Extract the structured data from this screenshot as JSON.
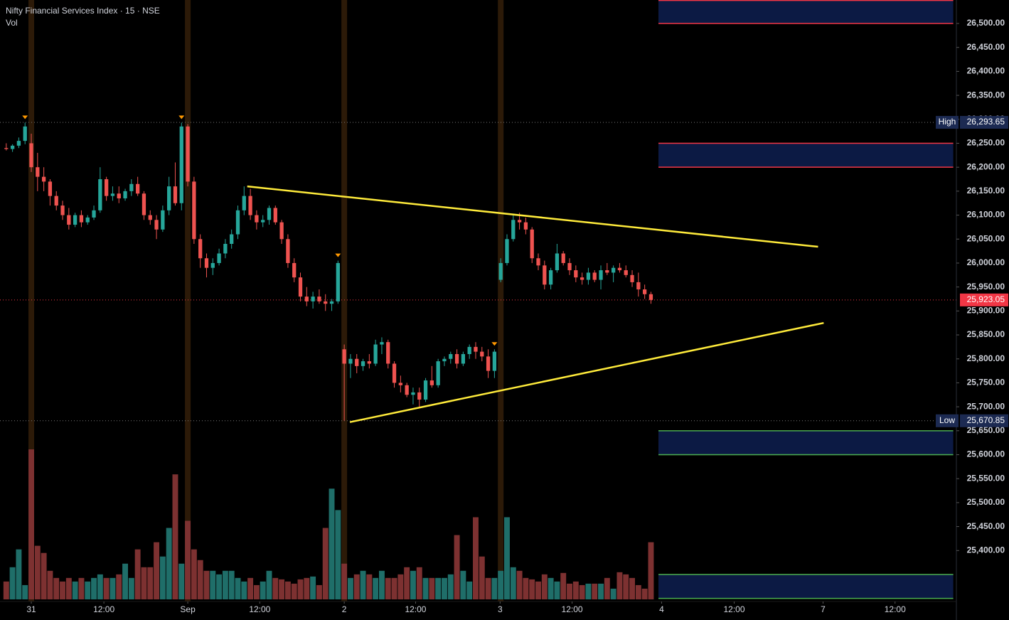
{
  "chart_data": {
    "type": "candlestick",
    "title": "Nifty Financial Services Index · 15 · NSE",
    "volume_label": "Vol",
    "up_color": "#26a69a",
    "down_color": "#ef5350",
    "volume_up_color": "#1f6e69",
    "volume_down_color": "#7d3131",
    "x": [
      -4,
      -3,
      -2,
      -1,
      0,
      1,
      2,
      3,
      4,
      5,
      6,
      7,
      8,
      9,
      10,
      11,
      12,
      13,
      14,
      15,
      16,
      17,
      18,
      19,
      20,
      21,
      22,
      23,
      24,
      25,
      26,
      27,
      28,
      29,
      30,
      31,
      32,
      33,
      34,
      35,
      36,
      37,
      38,
      39,
      40,
      41,
      42,
      43,
      44,
      45,
      46,
      47,
      48,
      49,
      50,
      51,
      52,
      53,
      54,
      55,
      56,
      57,
      58,
      59,
      60,
      61,
      62,
      63,
      64,
      65,
      66,
      67,
      68,
      69,
      70,
      71,
      72,
      73,
      74,
      75,
      76,
      77,
      78,
      79,
      80,
      81,
      82,
      83,
      84,
      85,
      86,
      87,
      88,
      89,
      90,
      91,
      92,
      93,
      94,
      95,
      96,
      97,
      98,
      99
    ],
    "candles": [
      [
        26240,
        26250,
        26235,
        26238
      ],
      [
        26238,
        26248,
        26232,
        26245
      ],
      [
        26245,
        26262,
        26240,
        26255
      ],
      [
        26255,
        26293,
        26248,
        26285
      ],
      [
        26250,
        26270,
        26190,
        26200
      ],
      [
        26200,
        26230,
        26150,
        26180
      ],
      [
        26180,
        26200,
        26150,
        26170
      ],
      [
        26170,
        26175,
        26120,
        26140
      ],
      [
        26140,
        26150,
        26110,
        26120
      ],
      [
        26120,
        26130,
        26090,
        26100
      ],
      [
        26100,
        26115,
        26070,
        26080
      ],
      [
        26080,
        26105,
        26075,
        26100
      ],
      [
        26100,
        26110,
        26075,
        26085
      ],
      [
        26085,
        26100,
        26080,
        26095
      ],
      [
        26095,
        26120,
        26090,
        26110
      ],
      [
        26110,
        26200,
        26105,
        26175
      ],
      [
        26175,
        26180,
        26130,
        26140
      ],
      [
        26140,
        26160,
        26130,
        26145
      ],
      [
        26145,
        26160,
        26125,
        26135
      ],
      [
        26135,
        26155,
        26130,
        26150
      ],
      [
        26150,
        26175,
        26140,
        26165
      ],
      [
        26165,
        26180,
        26140,
        26145
      ],
      [
        26145,
        26150,
        26090,
        26100
      ],
      [
        26100,
        26110,
        26080,
        26090
      ],
      [
        26090,
        26100,
        26050,
        26070
      ],
      [
        26070,
        26120,
        26065,
        26110
      ],
      [
        26110,
        26180,
        26100,
        26160
      ],
      [
        26160,
        26210,
        26120,
        26125
      ],
      [
        26125,
        26293,
        26110,
        26285
      ],
      [
        26285,
        26290,
        26160,
        26170
      ],
      [
        26170,
        26180,
        26040,
        26050
      ],
      [
        26050,
        26060,
        25990,
        26010
      ],
      [
        26010,
        26020,
        25970,
        25990
      ],
      [
        25990,
        26010,
        25975,
        26000
      ],
      [
        26000,
        26030,
        25995,
        26020
      ],
      [
        26020,
        26050,
        26010,
        26040
      ],
      [
        26040,
        26070,
        26030,
        26060
      ],
      [
        26060,
        26120,
        26050,
        26110
      ],
      [
        26110,
        26160,
        26100,
        26140
      ],
      [
        26140,
        26155,
        26090,
        26100
      ],
      [
        26100,
        26110,
        26070,
        26085
      ],
      [
        26085,
        26100,
        26075,
        26090
      ],
      [
        26090,
        26120,
        26080,
        26115
      ],
      [
        26115,
        26120,
        26080,
        26085
      ],
      [
        26085,
        26090,
        26040,
        26050
      ],
      [
        26050,
        26060,
        25990,
        26000
      ],
      [
        26000,
        26010,
        25960,
        25970
      ],
      [
        25970,
        25980,
        25920,
        25930
      ],
      [
        25930,
        25950,
        25910,
        25920
      ],
      [
        25920,
        25940,
        25905,
        25930
      ],
      [
        25930,
        25945,
        25915,
        25920
      ],
      [
        25920,
        25935,
        25900,
        25915
      ],
      [
        25915,
        25925,
        25900,
        25920
      ],
      [
        25920,
        26005,
        25915,
        26000
      ],
      [
        25820,
        25830,
        25671,
        25790
      ],
      [
        25790,
        25810,
        25760,
        25800
      ],
      [
        25800,
        25810,
        25770,
        25785
      ],
      [
        25785,
        25800,
        25775,
        25795
      ],
      [
        25795,
        25810,
        25780,
        25790
      ],
      [
        25790,
        25840,
        25785,
        25830
      ],
      [
        25830,
        25845,
        25810,
        25835
      ],
      [
        25835,
        25840,
        25780,
        25790
      ],
      [
        25790,
        25795,
        25740,
        25750
      ],
      [
        25750,
        25765,
        25730,
        25745
      ],
      [
        25745,
        25750,
        25720,
        25725
      ],
      [
        25725,
        25740,
        25705,
        25730
      ],
      [
        25730,
        25740,
        25700,
        25715
      ],
      [
        25715,
        25760,
        25710,
        25755
      ],
      [
        25755,
        25785,
        25740,
        25745
      ],
      [
        25745,
        25800,
        25740,
        25795
      ],
      [
        25795,
        25805,
        25785,
        25800
      ],
      [
        25800,
        25815,
        25790,
        25810
      ],
      [
        25810,
        25820,
        25780,
        25790
      ],
      [
        25790,
        25815,
        25785,
        25810
      ],
      [
        25810,
        25830,
        25800,
        25825
      ],
      [
        25825,
        25835,
        25800,
        25815
      ],
      [
        25815,
        25825,
        25795,
        25805
      ],
      [
        25805,
        25820,
        25760,
        25775
      ],
      [
        25775,
        25820,
        25760,
        25815
      ],
      [
        25965,
        26010,
        25960,
        26000
      ],
      [
        26000,
        26060,
        25995,
        26050
      ],
      [
        26050,
        26100,
        26045,
        26090
      ],
      [
        26090,
        26105,
        26070,
        26085
      ],
      [
        26085,
        26095,
        26060,
        26070
      ],
      [
        26070,
        26075,
        26000,
        26010
      ],
      [
        26010,
        26020,
        25985,
        25995
      ],
      [
        25995,
        26005,
        25945,
        25955
      ],
      [
        25955,
        25990,
        25945,
        25985
      ],
      [
        25985,
        26040,
        25980,
        26020
      ],
      [
        26020,
        26025,
        25995,
        26000
      ],
      [
        26000,
        26010,
        25975,
        25985
      ],
      [
        25985,
        25995,
        25960,
        25970
      ],
      [
        25970,
        25980,
        25955,
        25965
      ],
      [
        25965,
        25990,
        25955,
        25980
      ],
      [
        25980,
        25985,
        25960,
        25965
      ],
      [
        25965,
        25995,
        25945,
        25985
      ],
      [
        25985,
        26000,
        25975,
        25980
      ],
      [
        25980,
        25995,
        25960,
        25990
      ],
      [
        25990,
        26000,
        25980,
        25985
      ],
      [
        25985,
        25995,
        25970,
        25975
      ],
      [
        25975,
        25985,
        25950,
        25960
      ],
      [
        25960,
        25980,
        25930,
        25945
      ],
      [
        25945,
        25955,
        25925,
        25935
      ],
      [
        25935,
        25940,
        25915,
        25923.05
      ]
    ],
    "volume": [
      25,
      45,
      70,
      20,
      210,
      75,
      65,
      40,
      30,
      25,
      30,
      25,
      30,
      25,
      30,
      35,
      30,
      30,
      35,
      50,
      30,
      70,
      45,
      45,
      80,
      60,
      100,
      175,
      50,
      110,
      70,
      55,
      40,
      40,
      35,
      40,
      40,
      30,
      25,
      30,
      20,
      25,
      40,
      30,
      28,
      25,
      22,
      28,
      30,
      32,
      20,
      100,
      155,
      125,
      50,
      30,
      35,
      40,
      35,
      30,
      40,
      30,
      30,
      35,
      45,
      40,
      45,
      30,
      30,
      30,
      30,
      35,
      90,
      40,
      25,
      115,
      60,
      30,
      30,
      40,
      115,
      45,
      40,
      30,
      28,
      25,
      35,
      30,
      25,
      37,
      22,
      25,
      20,
      22,
      22,
      22,
      30,
      15,
      38,
      35,
      30,
      20,
      15,
      80
    ],
    "session_starts": [
      0,
      25,
      50,
      75
    ],
    "markers": [
      3,
      28,
      53,
      78
    ],
    "ylim": [
      25255,
      26549
    ],
    "yticks": [
      {
        "value": 25400,
        "label": "25,400.00"
      },
      {
        "value": 25450,
        "label": "25,450.00"
      },
      {
        "value": 25500,
        "label": "25,500.00"
      },
      {
        "value": 25550,
        "label": "25,550.00"
      },
      {
        "value": 25600,
        "label": "25,600.00"
      },
      {
        "value": 25650,
        "label": "25,650.00"
      },
      {
        "value": 25700,
        "label": "25,700.00"
      },
      {
        "value": 25750,
        "label": "25,750.00"
      },
      {
        "value": 25800,
        "label": "25,800.00"
      },
      {
        "value": 25850,
        "label": "25,850.00"
      },
      {
        "value": 25900,
        "label": "25,900.00"
      },
      {
        "value": 25950,
        "label": "25,950.00"
      },
      {
        "value": 26000,
        "label": "26,000.00"
      },
      {
        "value": 26050,
        "label": "26,050.00"
      },
      {
        "value": 26100,
        "label": "26,100.00"
      },
      {
        "value": 26150,
        "label": "26,150.00"
      },
      {
        "value": 26200,
        "label": "26,200.00"
      },
      {
        "value": 26250,
        "label": "26,250.00"
      },
      {
        "value": 26300,
        "label": "26,300.00"
      },
      {
        "value": 26350,
        "label": "26,350.00"
      },
      {
        "value": 26400,
        "label": "26,400.00"
      },
      {
        "value": 26450,
        "label": "26,450.00"
      },
      {
        "value": 26500,
        "label": "26,500.00"
      }
    ],
    "xlim": [
      -5,
      147.8
    ],
    "xticks": [
      {
        "value": 0,
        "label": "31"
      },
      {
        "value": 11.6,
        "label": "12:00"
      },
      {
        "value": 25,
        "label": "Sep"
      },
      {
        "value": 36.5,
        "label": "12:00"
      },
      {
        "value": 50,
        "label": "2"
      },
      {
        "value": 61.4,
        "label": "12:00"
      },
      {
        "value": 74.9,
        "label": "3"
      },
      {
        "value": 86.4,
        "label": "12:00"
      },
      {
        "value": 100.7,
        "label": "4"
      },
      {
        "value": 112.3,
        "label": "12:00"
      },
      {
        "value": 126.5,
        "label": "7"
      },
      {
        "value": 138,
        "label": "12:00"
      }
    ],
    "levels": [
      {
        "label": "High",
        "value": 26293.65,
        "value_label": "26,293.65",
        "color": "#1c2a52"
      },
      {
        "label": "Low",
        "value": 25670.85,
        "value_label": "25,670.85",
        "color": "#1c2a52"
      },
      {
        "value": 25923.05,
        "value_label": "25,923.05",
        "color": "#f23645"
      }
    ],
    "zones": [
      {
        "x": [
          100.2,
          147.3
        ],
        "y": [
          26500,
          26548
        ],
        "border": "#f23645"
      },
      {
        "x": [
          100.2,
          147.3
        ],
        "y": [
          26200,
          26250
        ],
        "border": "#f23645"
      },
      {
        "x": [
          100.2,
          147.3
        ],
        "y": [
          25600,
          25650
        ],
        "border": "#4caf50"
      },
      {
        "x": [
          100.2,
          147.3
        ],
        "y": [
          25300,
          25350
        ],
        "border": "#4caf50"
      }
    ],
    "trendlines": [
      {
        "x": [
          34.5,
          125.7
        ],
        "y": [
          26160,
          26034
        ],
        "color": "#ffeb3b"
      },
      {
        "x": [
          50.9,
          126.6
        ],
        "y": [
          25668,
          25875
        ],
        "color": "#ffeb3b"
      }
    ],
    "grid": false
  }
}
